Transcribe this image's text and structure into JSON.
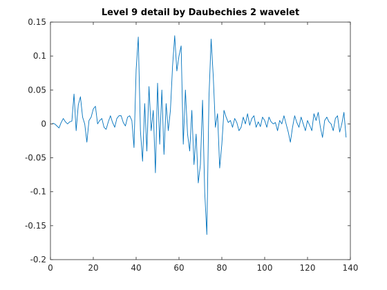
{
  "chart_data": {
    "type": "line",
    "title": "Level 9 detail by Daubechies 2 wavelet",
    "xlim": [
      0,
      140
    ],
    "xticks": [
      0,
      20,
      40,
      60,
      80,
      100,
      120,
      140
    ],
    "ylim": [
      -0.2,
      0.15
    ],
    "yticks": [
      -0.2,
      -0.15,
      -0.1,
      -0.05,
      0,
      0.05,
      0.1,
      0.15
    ],
    "grid": false,
    "series": [
      {
        "color": "#0072BD",
        "x": [
          1,
          2,
          3,
          4,
          5,
          6,
          7,
          8,
          9,
          10,
          11,
          12,
          13,
          14,
          15,
          16,
          17,
          18,
          19,
          20,
          21,
          22,
          23,
          24,
          25,
          26,
          27,
          28,
          29,
          30,
          31,
          32,
          33,
          34,
          35,
          36,
          37,
          38,
          39,
          40,
          41,
          42,
          43,
          44,
          45,
          46,
          47,
          48,
          49,
          50,
          51,
          52,
          53,
          54,
          55,
          56,
          57,
          58,
          59,
          60,
          61,
          62,
          63,
          64,
          65,
          66,
          67,
          68,
          69,
          70,
          71,
          72,
          73,
          74,
          75,
          76,
          77,
          78,
          79,
          80,
          81,
          82,
          83,
          84,
          85,
          86,
          87,
          88,
          89,
          90,
          91,
          92,
          93,
          94,
          95,
          96,
          97,
          98,
          99,
          100,
          101,
          102,
          103,
          104,
          105,
          106,
          107,
          108,
          109,
          110,
          111,
          112,
          113,
          114,
          115,
          116,
          117,
          118,
          119,
          120,
          121,
          122,
          123,
          124,
          125,
          126,
          127,
          128,
          129,
          130,
          131,
          132,
          133,
          134,
          135,
          136,
          137,
          138
        ],
        "values": [
          0.001,
          0.0,
          -0.003,
          -0.006,
          0.002,
          0.008,
          0.003,
          0.0,
          0.003,
          0.004,
          0.044,
          -0.01,
          0.028,
          0.04,
          0.01,
          0.0,
          -0.027,
          0.005,
          0.01,
          0.022,
          0.026,
          0.0,
          0.005,
          0.008,
          -0.005,
          -0.008,
          0.003,
          0.012,
          0.002,
          -0.005,
          0.008,
          0.012,
          0.012,
          0.002,
          -0.003,
          0.01,
          0.012,
          0.005,
          -0.035,
          0.08,
          0.128,
          -0.01,
          -0.055,
          0.03,
          -0.04,
          0.055,
          -0.01,
          0.02,
          -0.072,
          0.06,
          -0.03,
          0.05,
          -0.045,
          0.03,
          -0.01,
          0.02,
          0.085,
          0.13,
          0.078,
          0.1,
          0.115,
          -0.03,
          0.05,
          -0.015,
          -0.04,
          0.02,
          -0.06,
          -0.015,
          -0.087,
          -0.06,
          0.035,
          -0.1,
          -0.163,
          0.04,
          0.125,
          0.07,
          -0.005,
          0.015,
          -0.065,
          -0.03,
          0.02,
          0.01,
          0.002,
          0.005,
          -0.005,
          0.008,
          0.002,
          -0.01,
          -0.005,
          0.01,
          0.0,
          0.015,
          -0.002,
          0.008,
          0.012,
          -0.005,
          0.003,
          -0.004,
          0.01,
          0.005,
          -0.005,
          0.01,
          0.003,
          0.0,
          0.002,
          -0.01,
          0.005,
          0.0,
          0.012,
          0.0,
          -0.012,
          -0.027,
          -0.005,
          0.012,
          0.002,
          -0.005,
          0.01,
          0.0,
          -0.01,
          0.005,
          -0.002,
          -0.01,
          0.015,
          0.005,
          0.017,
          -0.005,
          -0.02,
          0.005,
          0.01,
          0.003,
          0.0,
          -0.01,
          0.008,
          0.012,
          -0.012,
          0.0,
          0.017,
          -0.02
        ]
      }
    ]
  }
}
